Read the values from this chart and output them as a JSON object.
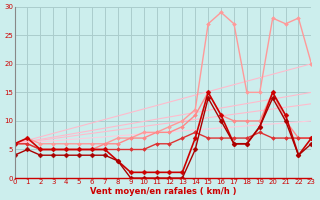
{
  "background_color": "#cceeed",
  "grid_color": "#aacccc",
  "xlabel": "Vent moyen/en rafales ( km/h )",
  "xlim": [
    0,
    23
  ],
  "ylim": [
    0,
    30
  ],
  "yticks": [
    0,
    5,
    10,
    15,
    20,
    25,
    30
  ],
  "xticks": [
    0,
    1,
    2,
    3,
    4,
    5,
    6,
    7,
    8,
    9,
    10,
    11,
    12,
    13,
    14,
    15,
    16,
    17,
    18,
    19,
    20,
    21,
    22,
    23
  ],
  "lines": [
    {
      "x": [
        0,
        23
      ],
      "y": [
        6,
        20
      ],
      "color": "#ffbbcc",
      "lw": 0.8,
      "marker": null
    },
    {
      "x": [
        0,
        23
      ],
      "y": [
        6,
        15
      ],
      "color": "#ffbbcc",
      "lw": 0.8,
      "marker": null
    },
    {
      "x": [
        0,
        23
      ],
      "y": [
        6,
        13
      ],
      "color": "#ffbbcc",
      "lw": 0.8,
      "marker": null
    },
    {
      "x": [
        0,
        23
      ],
      "y": [
        6,
        10
      ],
      "color": "#ffccdd",
      "lw": 0.8,
      "marker": null
    },
    {
      "x": [
        0,
        1,
        2,
        3,
        4,
        5,
        6,
        7,
        8,
        9,
        10,
        11,
        12,
        13,
        14,
        15,
        16,
        17,
        18,
        19,
        20,
        21,
        22,
        23
      ],
      "y": [
        6,
        7,
        6,
        6,
        6,
        6,
        6,
        6,
        7,
        7,
        8,
        8,
        9,
        10,
        12,
        27,
        29,
        27,
        15,
        15,
        28,
        27,
        28,
        20
      ],
      "color": "#ff9999",
      "lw": 1.0,
      "marker": "D",
      "ms": 2.0
    },
    {
      "x": [
        0,
        1,
        2,
        3,
        4,
        5,
        6,
        7,
        8,
        9,
        10,
        11,
        12,
        13,
        14,
        15,
        16,
        17,
        18,
        19,
        20,
        21,
        22,
        23
      ],
      "y": [
        6,
        6,
        5,
        5,
        5,
        5,
        5,
        6,
        6,
        7,
        7,
        8,
        8,
        9,
        11,
        15,
        11,
        10,
        10,
        10,
        15,
        10,
        7,
        7
      ],
      "color": "#ff8888",
      "lw": 1.0,
      "marker": "D",
      "ms": 2.0
    },
    {
      "x": [
        0,
        1,
        2,
        3,
        4,
        5,
        6,
        7,
        8,
        9,
        10,
        11,
        12,
        13,
        14,
        15,
        16,
        17,
        18,
        19,
        20,
        21,
        22,
        23
      ],
      "y": [
        6,
        6,
        5,
        5,
        5,
        5,
        5,
        5,
        5,
        5,
        5,
        6,
        6,
        7,
        8,
        7,
        7,
        7,
        7,
        8,
        7,
        7,
        7,
        7
      ],
      "color": "#dd3333",
      "lw": 1.0,
      "marker": "D",
      "ms": 2.0
    },
    {
      "x": [
        0,
        1,
        2,
        3,
        4,
        5,
        6,
        7,
        8,
        9,
        10,
        11,
        12,
        13,
        14,
        15,
        16,
        17,
        18,
        19,
        20,
        21,
        22,
        23
      ],
      "y": [
        6,
        7,
        5,
        5,
        5,
        5,
        5,
        5,
        3,
        1,
        1,
        1,
        1,
        1,
        7,
        15,
        11,
        6,
        6,
        9,
        15,
        11,
        4,
        7
      ],
      "color": "#cc0000",
      "lw": 1.2,
      "marker": "D",
      "ms": 2.5
    },
    {
      "x": [
        0,
        1,
        2,
        3,
        4,
        5,
        6,
        7,
        8,
        9,
        10,
        11,
        12,
        13,
        14,
        15,
        16,
        17,
        18,
        19,
        20,
        21,
        22,
        23
      ],
      "y": [
        4,
        5,
        4,
        4,
        4,
        4,
        4,
        4,
        3,
        0,
        0,
        0,
        0,
        0,
        5,
        14,
        10,
        6,
        6,
        9,
        14,
        10,
        4,
        6
      ],
      "color": "#aa0000",
      "lw": 1.0,
      "marker": "D",
      "ms": 2.5
    }
  ]
}
